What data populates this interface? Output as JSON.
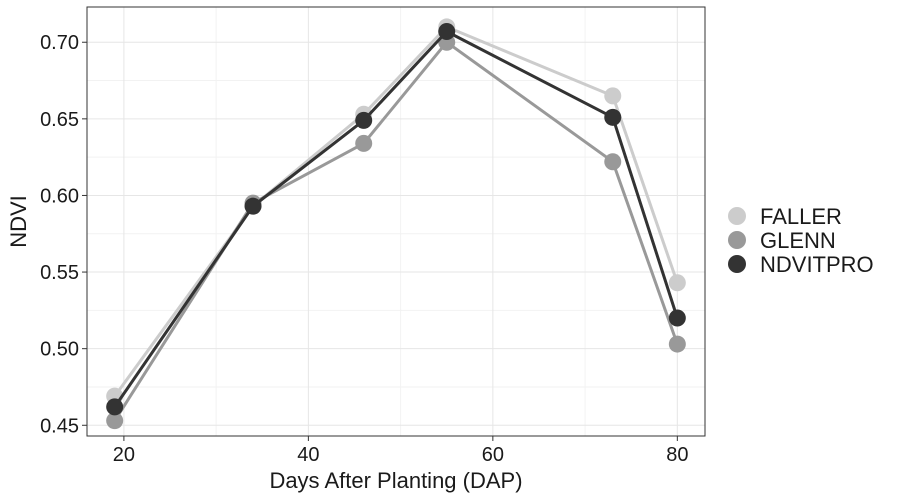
{
  "chart_data": {
    "type": "line",
    "xlabel": "Days After Planting (DAP)",
    "ylabel": "NDVI",
    "xlim": [
      16,
      83
    ],
    "ylim": [
      0.443,
      0.723
    ],
    "x_ticks": [
      20,
      40,
      60,
      80
    ],
    "x_tick_labels": [
      "20",
      "40",
      "60",
      "80"
    ],
    "y_ticks": [
      0.45,
      0.5,
      0.55,
      0.6,
      0.65,
      0.7
    ],
    "y_tick_labels": [
      "0.45",
      "0.50",
      "0.55",
      "0.60",
      "0.65",
      "0.70"
    ],
    "grid": true,
    "legend_position": "right",
    "x": [
      19,
      34,
      46,
      55,
      73,
      80
    ],
    "series": [
      {
        "name": "FALLER",
        "color": "#cccccc",
        "values": [
          0.469,
          0.593,
          0.653,
          0.71,
          0.665,
          0.543
        ]
      },
      {
        "name": "GLENN",
        "color": "#999999",
        "values": [
          0.453,
          0.595,
          0.634,
          0.7,
          0.622,
          0.503
        ]
      },
      {
        "name": "NDVITPRO",
        "color": "#333333",
        "values": [
          0.462,
          0.593,
          0.649,
          0.707,
          0.651,
          0.52
        ]
      }
    ]
  }
}
